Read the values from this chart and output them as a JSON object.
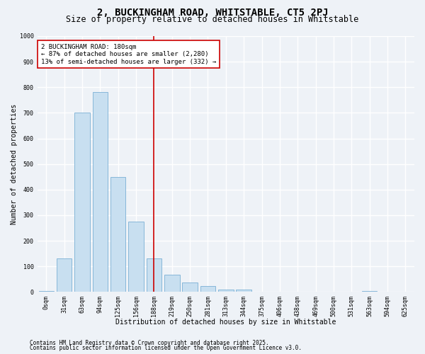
{
  "title1": "2, BUCKINGHAM ROAD, WHITSTABLE, CT5 2PJ",
  "title2": "Size of property relative to detached houses in Whitstable",
  "xlabel": "Distribution of detached houses by size in Whitstable",
  "ylabel": "Number of detached properties",
  "bar_labels": [
    "0sqm",
    "31sqm",
    "63sqm",
    "94sqm",
    "125sqm",
    "156sqm",
    "188sqm",
    "219sqm",
    "250sqm",
    "281sqm",
    "313sqm",
    "344sqm",
    "375sqm",
    "406sqm",
    "438sqm",
    "469sqm",
    "500sqm",
    "531sqm",
    "563sqm",
    "594sqm",
    "625sqm"
  ],
  "bar_values": [
    5,
    130,
    700,
    780,
    450,
    275,
    130,
    68,
    38,
    22,
    10,
    10,
    0,
    0,
    0,
    0,
    0,
    0,
    5,
    0,
    0
  ],
  "bar_color": "#c8dff0",
  "bar_edge_color": "#7aafd4",
  "vline_index": 6,
  "vline_color": "#cc0000",
  "annotation_text": "2 BUCKINGHAM ROAD: 180sqm\n← 87% of detached houses are smaller (2,280)\n13% of semi-detached houses are larger (332) →",
  "annotation_box_color": "#ffffff",
  "annotation_box_edge": "#cc0000",
  "ylim": [
    0,
    1000
  ],
  "yticks": [
    0,
    100,
    200,
    300,
    400,
    500,
    600,
    700,
    800,
    900,
    1000
  ],
  "footer1": "Contains HM Land Registry data © Crown copyright and database right 2025.",
  "footer2": "Contains public sector information licensed under the Open Government Licence v3.0.",
  "background_color": "#eef2f7",
  "plot_bg_color": "#eef2f7",
  "grid_color": "#ffffff",
  "title1_fontsize": 10,
  "title2_fontsize": 8.5,
  "axis_label_fontsize": 7,
  "tick_fontsize": 6,
  "annotation_fontsize": 6.5,
  "footer_fontsize": 5.5
}
